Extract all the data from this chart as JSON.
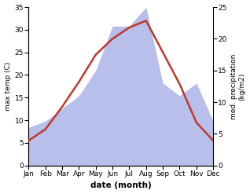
{
  "months": [
    "Jan",
    "Feb",
    "Mar",
    "Apr",
    "May",
    "Jun",
    "Jul",
    "Aug",
    "Sep",
    "Oct",
    "Nov",
    "Dec"
  ],
  "temperature": [
    5.5,
    8.0,
    13.0,
    18.5,
    24.5,
    28.0,
    30.5,
    32.0,
    25.0,
    18.0,
    9.5,
    5.5
  ],
  "precipitation": [
    6.0,
    7.0,
    9.0,
    11.0,
    15.0,
    22.0,
    22.0,
    25.0,
    13.0,
    11.0,
    13.0,
    7.0
  ],
  "temp_color": "#c0392b",
  "precip_fill_color": "#b0b8e8",
  "xlabel": "date (month)",
  "ylabel_left": "max temp (C)",
  "ylabel_right": "med. precipitation\n(kg/m2)",
  "ylim_left": [
    0,
    35
  ],
  "ylim_right": [
    0,
    25
  ],
  "yticks_left": [
    0,
    5,
    10,
    15,
    20,
    25,
    30,
    35
  ],
  "yticks_right": [
    0,
    5,
    10,
    15,
    20,
    25
  ],
  "bg_color": "#ffffff",
  "line_width": 1.8
}
